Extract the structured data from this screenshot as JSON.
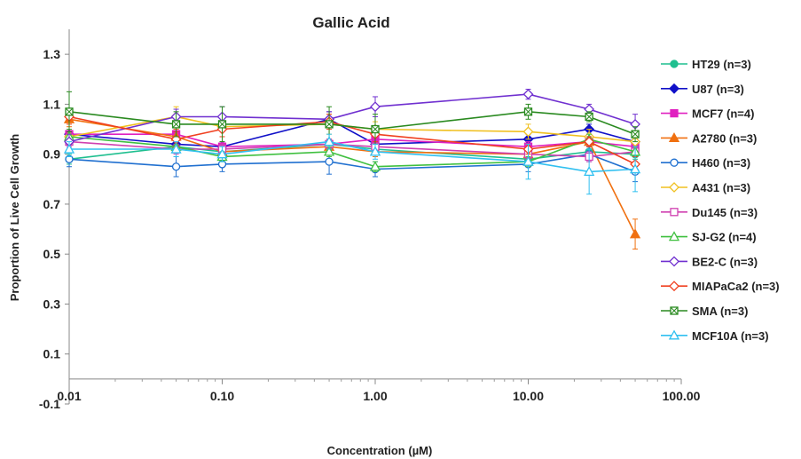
{
  "chart_data": {
    "type": "line",
    "title": "Gallic Acid",
    "xlabel": "Concentration (µM)",
    "ylabel": "Proportion of Live Cell Growth",
    "x_scale": "log",
    "xlim": [
      0.01,
      100
    ],
    "ylim": [
      -0.1,
      1.4
    ],
    "x_tick_labels": [
      "0.01",
      "0.10",
      "1.00",
      "10.00",
      "100.00"
    ],
    "y_tick_labels": [
      "-0.1",
      "0.1",
      "0.3",
      "0.5",
      "0.7",
      "0.9",
      "1.1",
      "1.3"
    ],
    "y_tick_values": [
      -0.1,
      0.1,
      0.3,
      0.5,
      0.7,
      0.9,
      1.1,
      1.3
    ],
    "x_tick_values": [
      0.01,
      0.1,
      1,
      10,
      100
    ],
    "x": [
      0.01,
      0.05,
      0.1,
      0.5,
      1,
      10,
      25,
      50
    ],
    "legend_position": "right",
    "series": [
      {
        "name": "HT29 (n=3)",
        "color": "#1fbf8f",
        "marker": "circle-filled",
        "values": [
          0.88,
          0.93,
          0.91,
          0.94,
          0.92,
          0.88,
          0.91,
          0.9
        ],
        "errors": [
          0.02,
          0.02,
          0.02,
          0.02,
          0.02,
          0.02,
          0.02,
          0.02
        ]
      },
      {
        "name": "U87 (n=3)",
        "color": "#1010c8",
        "marker": "diamond-filled",
        "values": [
          0.98,
          0.94,
          0.93,
          1.04,
          0.94,
          0.96,
          1.0,
          0.95
        ],
        "errors": [
          0.02,
          0.03,
          0.02,
          0.03,
          0.02,
          0.02,
          0.02,
          0.03
        ]
      },
      {
        "name": "MCF7 (n=4)",
        "color": "#e020c0",
        "marker": "square-filled",
        "values": [
          0.98,
          0.98,
          0.93,
          0.94,
          0.96,
          0.93,
          0.95,
          0.93
        ],
        "errors": [
          0.02,
          0.02,
          0.02,
          0.02,
          0.02,
          0.02,
          0.02,
          0.02
        ]
      },
      {
        "name": "A2780 (n=3)",
        "color": "#f07010",
        "marker": "triangle-filled",
        "values": [
          1.04,
          0.97,
          0.91,
          0.93,
          0.91,
          0.9,
          0.95,
          0.58
        ],
        "errors": [
          0.03,
          0.03,
          0.02,
          0.03,
          0.02,
          0.02,
          0.02,
          0.06
        ]
      },
      {
        "name": "H460 (n=3)",
        "color": "#2070d0",
        "marker": "circle-open",
        "values": [
          0.88,
          0.85,
          0.86,
          0.87,
          0.84,
          0.86,
          0.9,
          0.83
        ],
        "errors": [
          0.03,
          0.04,
          0.03,
          0.05,
          0.03,
          0.03,
          0.03,
          0.04
        ]
      },
      {
        "name": "A431 (n=3)",
        "color": "#f0c020",
        "marker": "diamond-open",
        "values": [
          0.97,
          1.05,
          1.01,
          1.02,
          1.0,
          0.99,
          0.97,
          0.95
        ],
        "errors": [
          0.03,
          0.04,
          0.04,
          0.04,
          0.03,
          0.03,
          0.03,
          0.03
        ]
      },
      {
        "name": "Du145 (n=3)",
        "color": "#d040b0",
        "marker": "square-open",
        "values": [
          0.95,
          0.92,
          0.92,
          0.94,
          0.93,
          0.9,
          0.89,
          0.91
        ],
        "errors": [
          0.02,
          0.02,
          0.02,
          0.02,
          0.02,
          0.02,
          0.02,
          0.02
        ]
      },
      {
        "name": "SJ-G2 (n=4)",
        "color": "#40c040",
        "marker": "triangle-open",
        "values": [
          0.97,
          0.93,
          0.89,
          0.91,
          0.85,
          0.87,
          0.96,
          0.91
        ],
        "errors": [
          0.03,
          0.02,
          0.02,
          0.02,
          0.02,
          0.02,
          0.02,
          0.02
        ]
      },
      {
        "name": "BE2-C (n=3)",
        "color": "#7030d0",
        "marker": "diamond-open",
        "values": [
          0.95,
          1.05,
          1.05,
          1.04,
          1.09,
          1.14,
          1.08,
          1.02
        ],
        "errors": [
          0.03,
          0.03,
          0.04,
          0.03,
          0.04,
          0.02,
          0.02,
          0.04
        ]
      },
      {
        "name": "MIAPaCa2 (n=3)",
        "color": "#f04020",
        "marker": "diamond-open",
        "values": [
          1.05,
          0.96,
          1.0,
          1.03,
          0.98,
          0.92,
          0.95,
          0.86
        ],
        "errors": [
          0.03,
          0.03,
          0.03,
          0.03,
          0.03,
          0.02,
          0.02,
          0.03
        ]
      },
      {
        "name": "SMA (n=3)",
        "color": "#2a8a20",
        "marker": "square-x",
        "values": [
          1.07,
          1.02,
          1.02,
          1.02,
          1.0,
          1.07,
          1.05,
          0.98
        ],
        "errors": [
          0.08,
          0.05,
          0.07,
          0.07,
          0.06,
          0.03,
          0.02,
          0.03
        ]
      },
      {
        "name": "MCF10A (n=3)",
        "color": "#30c0f0",
        "marker": "triangle-open",
        "values": [
          0.92,
          0.92,
          0.9,
          0.95,
          0.91,
          0.87,
          0.83,
          0.84
        ],
        "errors": [
          0.03,
          0.03,
          0.03,
          0.03,
          0.03,
          0.07,
          0.09,
          0.09
        ]
      }
    ]
  }
}
